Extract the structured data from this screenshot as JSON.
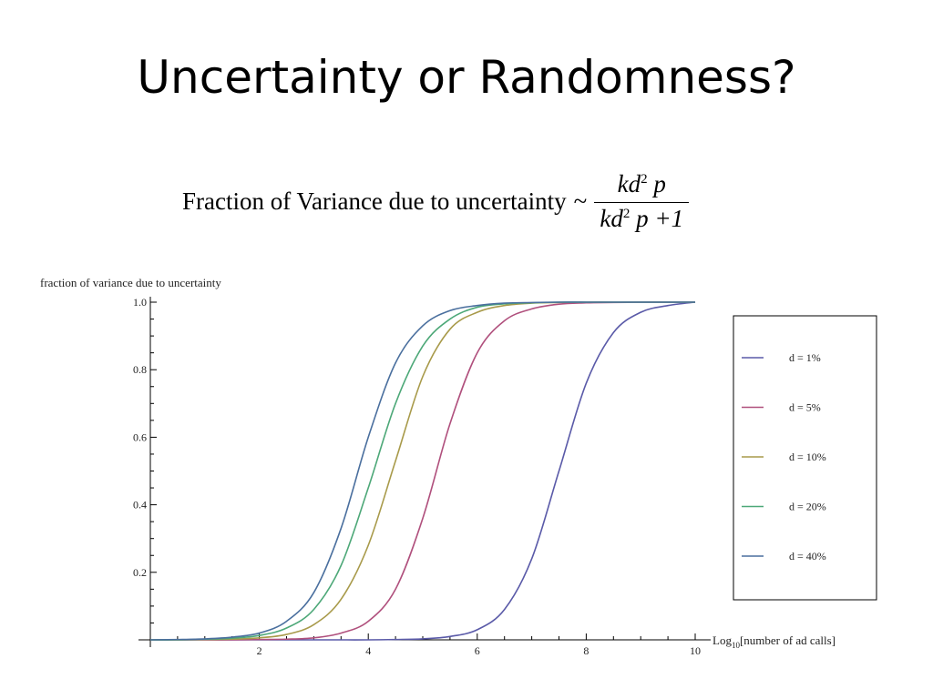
{
  "slide": {
    "title": "Uncertainty or Randomness?"
  },
  "formula": {
    "lhs": "Fraction of  Variance due to uncertainty",
    "tilde": "~",
    "numerator": {
      "base": "kd",
      "exp": "2",
      "tail": " p"
    },
    "denominator": {
      "base": "kd",
      "exp": "2",
      "tail": " p +1"
    }
  },
  "chart_data": {
    "type": "line",
    "title": "",
    "ylabel": "fraction of  variance due to uncertainty",
    "xlabel": "Log",
    "xlabel_sub": "10",
    "xlabel_rest": "[number of ad calls]",
    "xlim": [
      0,
      10
    ],
    "ylim": [
      0,
      1
    ],
    "xticks": [
      2,
      4,
      6,
      8,
      10
    ],
    "xtick_labels": [
      "2",
      "4",
      "6",
      "8",
      "10"
    ],
    "yticks": [
      0.2,
      0.4,
      0.6,
      0.8,
      1.0
    ],
    "ytick_labels": [
      "0.2",
      "0.4",
      "0.6",
      "0.8",
      "1.0"
    ],
    "grid": false,
    "legend_position": "right",
    "x": [
      0,
      0.5,
      1,
      1.5,
      2,
      2.5,
      3,
      3.5,
      4,
      4.5,
      5,
      5.5,
      6,
      6.5,
      7,
      7.5,
      8,
      8.5,
      9,
      9.5,
      10
    ],
    "series": [
      {
        "name": "d = 1%",
        "color": "#5a5aa8",
        "values": [
          0.0,
          0.0,
          0.0,
          0.0,
          0.0,
          0.0,
          0.0,
          0.0,
          0.0,
          0.001,
          0.003,
          0.01,
          0.03,
          0.09,
          0.24,
          0.5,
          0.76,
          0.91,
          0.97,
          0.99,
          1.0
        ]
      },
      {
        "name": "d = 5%",
        "color": "#b0507d",
        "values": [
          0.0,
          0.0,
          0.0,
          0.0,
          0.001,
          0.002,
          0.006,
          0.02,
          0.055,
          0.15,
          0.36,
          0.64,
          0.85,
          0.945,
          0.98,
          0.994,
          0.998,
          0.999,
          1.0,
          1.0,
          1.0
        ]
      },
      {
        "name": "d = 10%",
        "color": "#a89a4a",
        "values": [
          0.0,
          0.0,
          0.001,
          0.002,
          0.006,
          0.016,
          0.045,
          0.12,
          0.28,
          0.53,
          0.78,
          0.92,
          0.97,
          0.99,
          0.997,
          0.999,
          1.0,
          1.0,
          1.0,
          1.0,
          1.0
        ]
      },
      {
        "name": "d = 20%",
        "color": "#4da878",
        "values": [
          0.0,
          0.0,
          0.002,
          0.005,
          0.013,
          0.035,
          0.09,
          0.22,
          0.45,
          0.7,
          0.87,
          0.95,
          0.985,
          0.995,
          0.998,
          1.0,
          1.0,
          1.0,
          1.0,
          1.0,
          1.0
        ]
      },
      {
        "name": "d = 40%",
        "color": "#4a6f9e",
        "values": [
          0.0,
          0.001,
          0.003,
          0.008,
          0.02,
          0.055,
          0.14,
          0.33,
          0.6,
          0.82,
          0.93,
          0.975,
          0.99,
          0.997,
          0.999,
          1.0,
          1.0,
          1.0,
          1.0,
          1.0,
          1.0
        ]
      }
    ]
  }
}
